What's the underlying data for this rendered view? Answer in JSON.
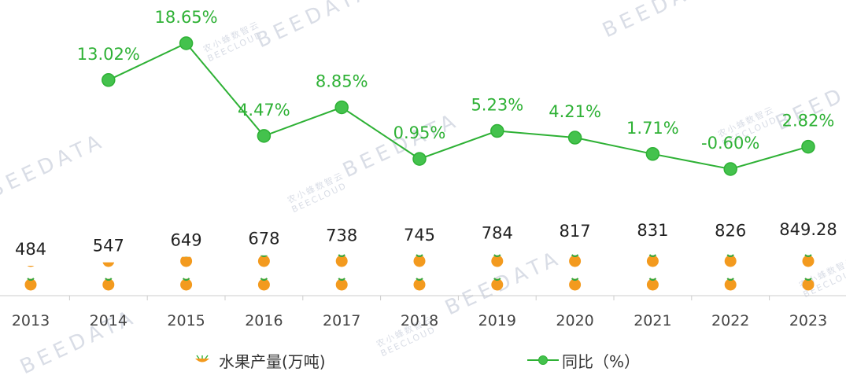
{
  "chart_data": {
    "type": "bar+line",
    "categories": [
      "2013",
      "2014",
      "2015",
      "2016",
      "2017",
      "2018",
      "2019",
      "2020",
      "2021",
      "2022",
      "2023"
    ],
    "series": [
      {
        "name": "水果产量(万吨)",
        "kind": "pictorial-bar",
        "values": [
          484,
          547,
          649,
          678,
          738,
          745,
          784,
          817,
          831,
          826,
          849.28
        ],
        "labels": [
          "484",
          "547",
          "649",
          "678",
          "738",
          "745",
          "784",
          "817",
          "831",
          "826",
          "849.28"
        ],
        "color": "#f39a1e"
      },
      {
        "name": "同比（%）",
        "kind": "line",
        "values": [
          null,
          13.02,
          18.65,
          4.47,
          8.85,
          0.95,
          5.23,
          4.21,
          1.71,
          -0.6,
          2.82
        ],
        "labels": [
          "",
          "13.02%",
          "18.65%",
          "4.47%",
          "8.85%",
          "0.95%",
          "5.23%",
          "4.21%",
          "1.71%",
          "-0.60%",
          "2.82%"
        ],
        "color": "#2eb135"
      }
    ],
    "legend_position": "bottom",
    "grid": false
  },
  "watermark": {
    "brand": "BEEDATA",
    "sub": "BEECLOUD",
    "cn": "农小蜂数智云"
  },
  "colors": {
    "bar_orange": "#f39a1e",
    "line_green": "#2eb135",
    "axis": "#cccccc",
    "text": "#333333"
  }
}
